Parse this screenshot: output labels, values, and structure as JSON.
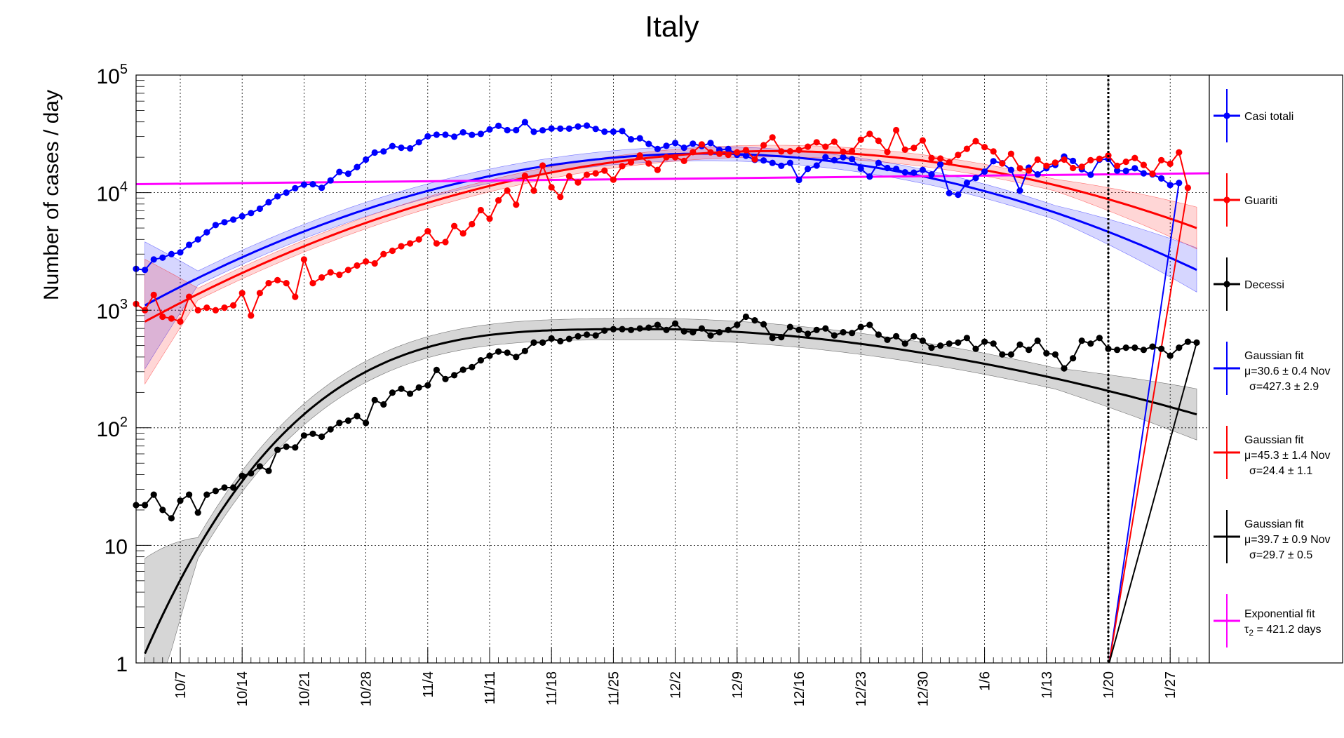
{
  "chart_data": {
    "type": "line",
    "title": "Italy",
    "ylabel": "Number of cases / day",
    "xlabel": "",
    "yscale": "log",
    "ylim": [
      1,
      100000
    ],
    "x_units": "day index from 10/1 (10/1 = 0)",
    "xlim": [
      1,
      121
    ],
    "grid": true,
    "legend_position": "right",
    "y_tick_labels": [
      {
        "value": 1,
        "label": "1"
      },
      {
        "value": 10,
        "label": "10"
      },
      {
        "value": 100,
        "label": "10",
        "sup": "2"
      },
      {
        "value": 1000,
        "label": "10",
        "sup": "3"
      },
      {
        "value": 10000,
        "label": "10",
        "sup": "4"
      },
      {
        "value": 100000,
        "label": "10",
        "sup": "5"
      }
    ],
    "x_tick_labels": [
      {
        "day": 6,
        "label": "10/7"
      },
      {
        "day": 13,
        "label": "10/14"
      },
      {
        "day": 20,
        "label": "10/21"
      },
      {
        "day": 27,
        "label": "10/28"
      },
      {
        "day": 34,
        "label": "11/4"
      },
      {
        "day": 41,
        "label": "11/11"
      },
      {
        "day": 48,
        "label": "11/18"
      },
      {
        "day": 55,
        "label": "11/25"
      },
      {
        "day": 62,
        "label": "12/2"
      },
      {
        "day": 69,
        "label": "12/9"
      },
      {
        "day": 76,
        "label": "12/16"
      },
      {
        "day": 83,
        "label": "12/23"
      },
      {
        "day": 90,
        "label": "12/30"
      },
      {
        "day": 97,
        "label": "1/6"
      },
      {
        "day": 104,
        "label": "1/13"
      },
      {
        "day": 111,
        "label": "1/20"
      },
      {
        "day": 118,
        "label": "1/27"
      }
    ],
    "vline_day": 111,
    "series": [
      {
        "name": "Casi totali",
        "color": "#0000ff",
        "marker": "dot",
        "x_start": 1,
        "values": [
          2250,
          2200,
          2700,
          2800,
          3000,
          3100,
          3600,
          4000,
          4600,
          5300,
          5600,
          5900,
          6300,
          6700,
          7300,
          8300,
          9300,
          10000,
          10900,
          11700,
          11800,
          11000,
          12700,
          15000,
          14500,
          16500,
          19100,
          21900,
          22400,
          24900,
          24100,
          23800,
          26800,
          30100,
          31100,
          31100,
          29900,
          32600,
          31000,
          31600,
          34500,
          37000,
          34000,
          34000,
          39800,
          32900,
          33900,
          35100,
          35000,
          35000,
          36500,
          37200,
          34800,
          33000,
          33000,
          33400,
          28400,
          29000,
          26000,
          23500,
          25000,
          26400,
          24100,
          26100,
          24900,
          26400,
          23100,
          23500,
          21000,
          20600,
          19000,
          18800,
          17900,
          16900,
          17900,
          12800,
          15900,
          17000,
          20000,
          18900,
          20000,
          19300,
          16000,
          13700,
          17900,
          16200,
          15900,
          14900,
          14800,
          15600,
          14300,
          17400,
          9900,
          9600,
          12100,
          13300,
          15100,
          18500,
          17800,
          15600,
          10400,
          16300,
          14300,
          16100,
          17200,
          20300,
          18600,
          15800,
          14200,
          19100,
          19300,
          15400,
          15300,
          16100,
          14600,
          14300,
          13200,
          11600,
          12100
        ],
        "fit_name": "Gaussian fit",
        "fit_mu": "μ=30.6 ± 0.4 Nov",
        "fit_sigma": "σ=427.3 ± 2.9"
      },
      {
        "name": "Guariti",
        "color": "#ff0000",
        "marker": "dot",
        "x_start": 1,
        "values": [
          1130,
          1000,
          1350,
          880,
          850,
          800,
          1300,
          1000,
          1050,
          1000,
          1050,
          1100,
          1400,
          900,
          1400,
          1700,
          1800,
          1700,
          1300,
          2700,
          1700,
          1900,
          2100,
          2000,
          2200,
          2400,
          2600,
          2500,
          3000,
          3200,
          3500,
          3700,
          4000,
          4700,
          3700,
          3800,
          5200,
          4500,
          5400,
          7100,
          6000,
          8600,
          10400,
          7900,
          13900,
          10400,
          17000,
          11100,
          9200,
          13800,
          12200,
          14200,
          14600,
          15400,
          12900,
          16800,
          18100,
          20700,
          17700,
          15600,
          20000,
          20000,
          18600,
          22100,
          25700,
          22000,
          21400,
          21000,
          22000,
          23000,
          19200,
          25300,
          29500,
          22400,
          22500,
          23100,
          24600,
          26800,
          24600,
          27100,
          22300,
          22600,
          28200,
          31600,
          27600,
          22200,
          34000,
          23200,
          24000,
          27800,
          19700,
          19500,
          18100,
          20900,
          23600,
          27400,
          24400,
          22400,
          17700,
          21400,
          16100,
          15400,
          19100,
          16900,
          18000,
          19100,
          16200,
          16600,
          18900,
          19400,
          20700,
          16900,
          18300,
          19700,
          17200,
          14500,
          18900,
          17600,
          22000,
          11000
        ],
        "fit_name": "Gaussian fit",
        "fit_mu": "μ=45.3 ± 1.4 Nov",
        "fit_sigma": "σ=24.4 ± 1.1"
      },
      {
        "name": "Decessi",
        "color": "#000000",
        "marker": "dot",
        "x_start": 1,
        "values": [
          22,
          22,
          27,
          20,
          17,
          24,
          27,
          19,
          27,
          29,
          31,
          31,
          39,
          41,
          47,
          43,
          65,
          69,
          68,
          86,
          89,
          84,
          97,
          110,
          115,
          126,
          110,
          172,
          158,
          199,
          215,
          195,
          220,
          230,
          310,
          260,
          280,
          312,
          328,
          375,
          410,
          445,
          435,
          400,
          450,
          530,
          530,
          575,
          545,
          570,
          600,
          620,
          610,
          670,
          690,
          690,
          680,
          700,
          710,
          750,
          680,
          770,
          660,
          650,
          700,
          610,
          650,
          680,
          750,
          880,
          820,
          760,
          580,
          590,
          720,
          680,
          630,
          680,
          700,
          610,
          650,
          640,
          720,
          750,
          620,
          560,
          600,
          520,
          600,
          550,
          480,
          500,
          520,
          530,
          580,
          470,
          540,
          520,
          420,
          420,
          510,
          460,
          550,
          430,
          420,
          320,
          390,
          550,
          520,
          580,
          470,
          460,
          480,
          480,
          460,
          490,
          470,
          410,
          480,
          540,
          530
        ],
        "fit_name": "Gaussian fit",
        "fit_mu": "μ=39.7 ± 0.9 Nov",
        "fit_sigma": "σ=29.7 ± 0.5"
      },
      {
        "name": "Exponential fit",
        "color": "#ff00ff",
        "marker": "line",
        "fit_tau": "τ",
        "fit_tau_sub": "2",
        "fit_tau_value": " = 421.2 days",
        "start_value": 11800,
        "end_value": 14600
      }
    ]
  }
}
